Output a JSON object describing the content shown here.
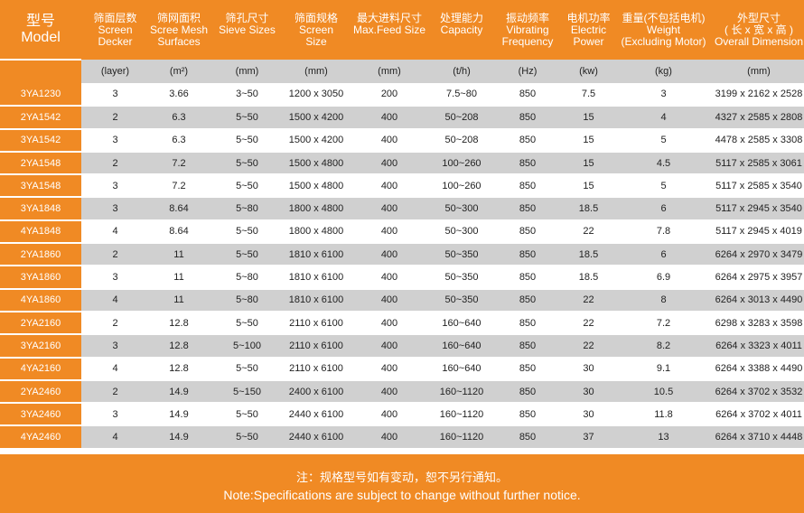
{
  "headers": {
    "model": {
      "cn": "型号",
      "en": "Model"
    },
    "decker": {
      "cn": "筛面层数",
      "en1": "Screen",
      "en2": "Decker"
    },
    "surface": {
      "cn": "筛网面积",
      "en1": "Scree Mesh",
      "en2": "Surfaces"
    },
    "sieve": {
      "cn": "筛孔尺寸",
      "en1": "Sieve Sizes",
      "en2": ""
    },
    "screen": {
      "cn": "筛面规格",
      "en1": "Screen",
      "en2": "Size"
    },
    "feed": {
      "cn": "最大进料尺寸",
      "en1": "Max.Feed Size",
      "en2": ""
    },
    "capacity": {
      "cn": "处理能力",
      "en1": "Capacity",
      "en2": ""
    },
    "frequency": {
      "cn": "振动频率",
      "en1": "Vibrating",
      "en2": "Frequency"
    },
    "power": {
      "cn": "电机功率",
      "en1": "Electric",
      "en2": "Power"
    },
    "weight": {
      "cn": "重量(不包括电机)",
      "en1": "Weight",
      "en2": "(Excluding Motor)"
    },
    "dimension": {
      "cn": "外型尺寸",
      "en1": "( 长 x 宽 x 高 )",
      "en2": "Overall Dimension"
    }
  },
  "units": [
    "(layer)",
    "(m²)",
    "(mm)",
    "(mm)",
    "(mm)",
    "(t/h)",
    "(Hz)",
    "(kw)",
    "(kg)",
    "(mm)"
  ],
  "rows": [
    [
      "3YA1230",
      "3",
      "3.66",
      "3~50",
      "1200 x 3050",
      "200",
      "7.5~80",
      "850",
      "7.5",
      "3",
      "3199 x 2162 x 2528"
    ],
    [
      "2YA1542",
      "2",
      "6.3",
      "5~50",
      "1500 x 4200",
      "400",
      "50~208",
      "850",
      "15",
      "4",
      "4327 x 2585 x 2808"
    ],
    [
      "3YA1542",
      "3",
      "6.3",
      "5~50",
      "1500 x 4200",
      "400",
      "50~208",
      "850",
      "15",
      "5",
      "4478 x 2585 x 3308"
    ],
    [
      "2YA1548",
      "2",
      "7.2",
      "5~50",
      "1500 x 4800",
      "400",
      "100~260",
      "850",
      "15",
      "4.5",
      "5117 x 2585 x 3061"
    ],
    [
      "3YA1548",
      "3",
      "7.2",
      "5~50",
      "1500 x 4800",
      "400",
      "100~260",
      "850",
      "15",
      "5",
      "5117 x 2585 x 3540"
    ],
    [
      "3YA1848",
      "3",
      "8.64",
      "5~80",
      "1800 x 4800",
      "400",
      "50~300",
      "850",
      "18.5",
      "6",
      "5117 x 2945 x 3540"
    ],
    [
      "4YA1848",
      "4",
      "8.64",
      "5~50",
      "1800 x 4800",
      "400",
      "50~300",
      "850",
      "22",
      "7.8",
      "5117 x 2945 x 4019"
    ],
    [
      "2YA1860",
      "2",
      "11",
      "5~50",
      "1810 x 6100",
      "400",
      "50~350",
      "850",
      "18.5",
      "6",
      "6264 x 2970 x 3479"
    ],
    [
      "3YA1860",
      "3",
      "11",
      "5~80",
      "1810 x 6100",
      "400",
      "50~350",
      "850",
      "18.5",
      "6.9",
      "6264 x 2975 x 3957"
    ],
    [
      "4YA1860",
      "4",
      "11",
      "5~80",
      "1810 x 6100",
      "400",
      "50~350",
      "850",
      "22",
      "8",
      "6264 x 3013 x 4490"
    ],
    [
      "2YA2160",
      "2",
      "12.8",
      "5~50",
      "2110 x 6100",
      "400",
      "160~640",
      "850",
      "22",
      "7.2",
      "6298 x 3283 x 3598"
    ],
    [
      "3YA2160",
      "3",
      "12.8",
      "5~100",
      "2110 x 6100",
      "400",
      "160~640",
      "850",
      "22",
      "8.2",
      "6264 x 3323 x 4011"
    ],
    [
      "4YA2160",
      "4",
      "12.8",
      "5~50",
      "2110 x 6100",
      "400",
      "160~640",
      "850",
      "30",
      "9.1",
      "6264 x 3388 x 4490"
    ],
    [
      "2YA2460",
      "2",
      "14.9",
      "5~150",
      "2400 x 6100",
      "400",
      "160~1120",
      "850",
      "30",
      "10.5",
      "6264 x 3702 x 3532"
    ],
    [
      "3YA2460",
      "3",
      "14.9",
      "5~50",
      "2440 x 6100",
      "400",
      "160~1120",
      "850",
      "30",
      "11.8",
      "6264 x 3702 x 4011"
    ],
    [
      "4YA2460",
      "4",
      "14.9",
      "5~50",
      "2440 x 6100",
      "400",
      "160~1120",
      "850",
      "37",
      "13",
      "6264 x 3710 x 4448"
    ]
  ],
  "note": {
    "cn": "注：规格型号如有变动，恕不另行通知。",
    "en": "Note:Specifications are subject to change without further notice."
  },
  "colors": {
    "accent": "#f08a24",
    "stripe": "#d0d0d0"
  }
}
